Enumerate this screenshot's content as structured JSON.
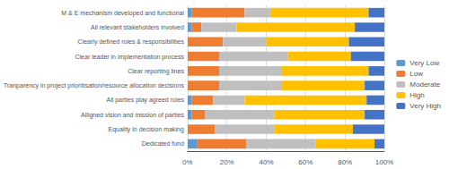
{
  "chart_data": {
    "type": "bar",
    "orientation": "horizontal",
    "stacked": true,
    "categories": [
      "M & E mechanism developed and functional",
      "All relevant stakeholders involved",
      "Clearly defined roles & responsibilities",
      "Clear leader in implementation process",
      "Clear reporting lines",
      "Tranparency in project prioritisation/resource allocation decisions",
      "All parties play agreed roles",
      "Alligned vision and mission of parties",
      "Equality in decision making",
      "Dedicated fund"
    ],
    "series": [
      {
        "name": "Very Low",
        "color": "#5B9BD5",
        "values": [
          2,
          2,
          0,
          0,
          0,
          0,
          2,
          2,
          0,
          5
        ]
      },
      {
        "name": "Low",
        "color": "#ED7D31",
        "values": [
          27,
          5,
          18,
          16,
          16,
          16,
          11,
          7,
          14,
          25
        ]
      },
      {
        "name": "Moderate",
        "color": "#BFBFBF",
        "values": [
          13,
          18,
          22,
          35,
          32,
          32,
          16,
          35,
          30,
          35
        ]
      },
      {
        "name": "High",
        "color": "#FFC000",
        "values": [
          50,
          60,
          42,
          32,
          44,
          42,
          62,
          46,
          40,
          30
        ]
      },
      {
        "name": "Very High",
        "color": "#4472C4",
        "values": [
          8,
          15,
          18,
          17,
          8,
          10,
          9,
          10,
          16,
          5
        ]
      }
    ],
    "xlim": [
      0,
      100
    ],
    "xticks": [
      {
        "value": 0,
        "label": "0%"
      },
      {
        "value": 20,
        "label": "20%"
      },
      {
        "value": 40,
        "label": "40%"
      },
      {
        "value": 60,
        "label": "60%"
      },
      {
        "value": 80,
        "label": "80%"
      },
      {
        "value": 100,
        "label": "100%"
      }
    ],
    "grid": true,
    "legend": "right"
  }
}
